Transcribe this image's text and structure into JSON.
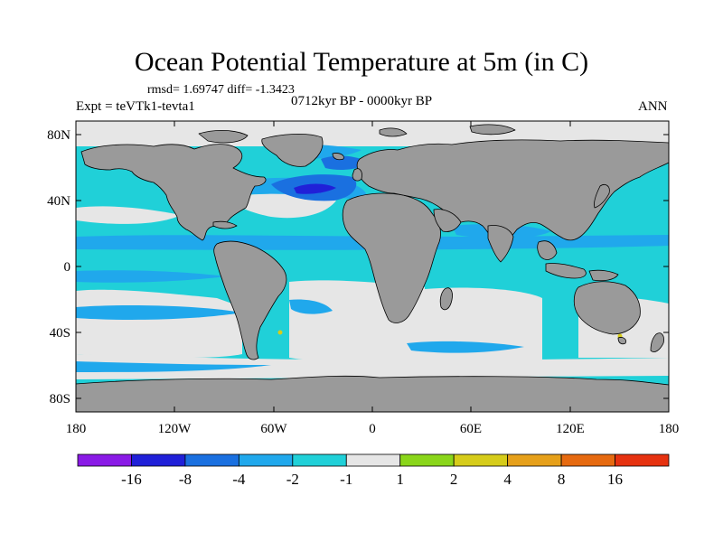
{
  "title": "Ocean Potential Temperature at 5m (in C)",
  "stats": "rmsd= 1.69747 diff= -1.3423",
  "experiment": "Expt = teVTk1-tevta1",
  "period": "0712kyr BP - 0000kyr BP",
  "season": "ANN",
  "lat_labels": [
    "80N",
    "40N",
    "0",
    "40S",
    "80S"
  ],
  "lon_labels": [
    "180",
    "120W",
    "60W",
    "0",
    "60E",
    "120E",
    "180"
  ],
  "colorbar": {
    "colors": [
      "#8a1ae6",
      "#2020d8",
      "#1a70e0",
      "#20a8ec",
      "#20d0d8",
      "#e6e6e6",
      "#8ad61a",
      "#d6cc1a",
      "#e6a01a",
      "#e66a10",
      "#e63210"
    ],
    "labels": [
      "-16",
      "-8",
      "-4",
      "-2",
      "-1",
      "1",
      "2",
      "4",
      "8",
      "16"
    ]
  },
  "colors": {
    "land": "#9a9a9a",
    "ocean_main": "#20d0d8",
    "ocean_light": "#e6e6e6",
    "ocean_mid": "#20a8ec",
    "ocean_dark": "#1a70e0",
    "ocean_deep": "#2020d8"
  }
}
